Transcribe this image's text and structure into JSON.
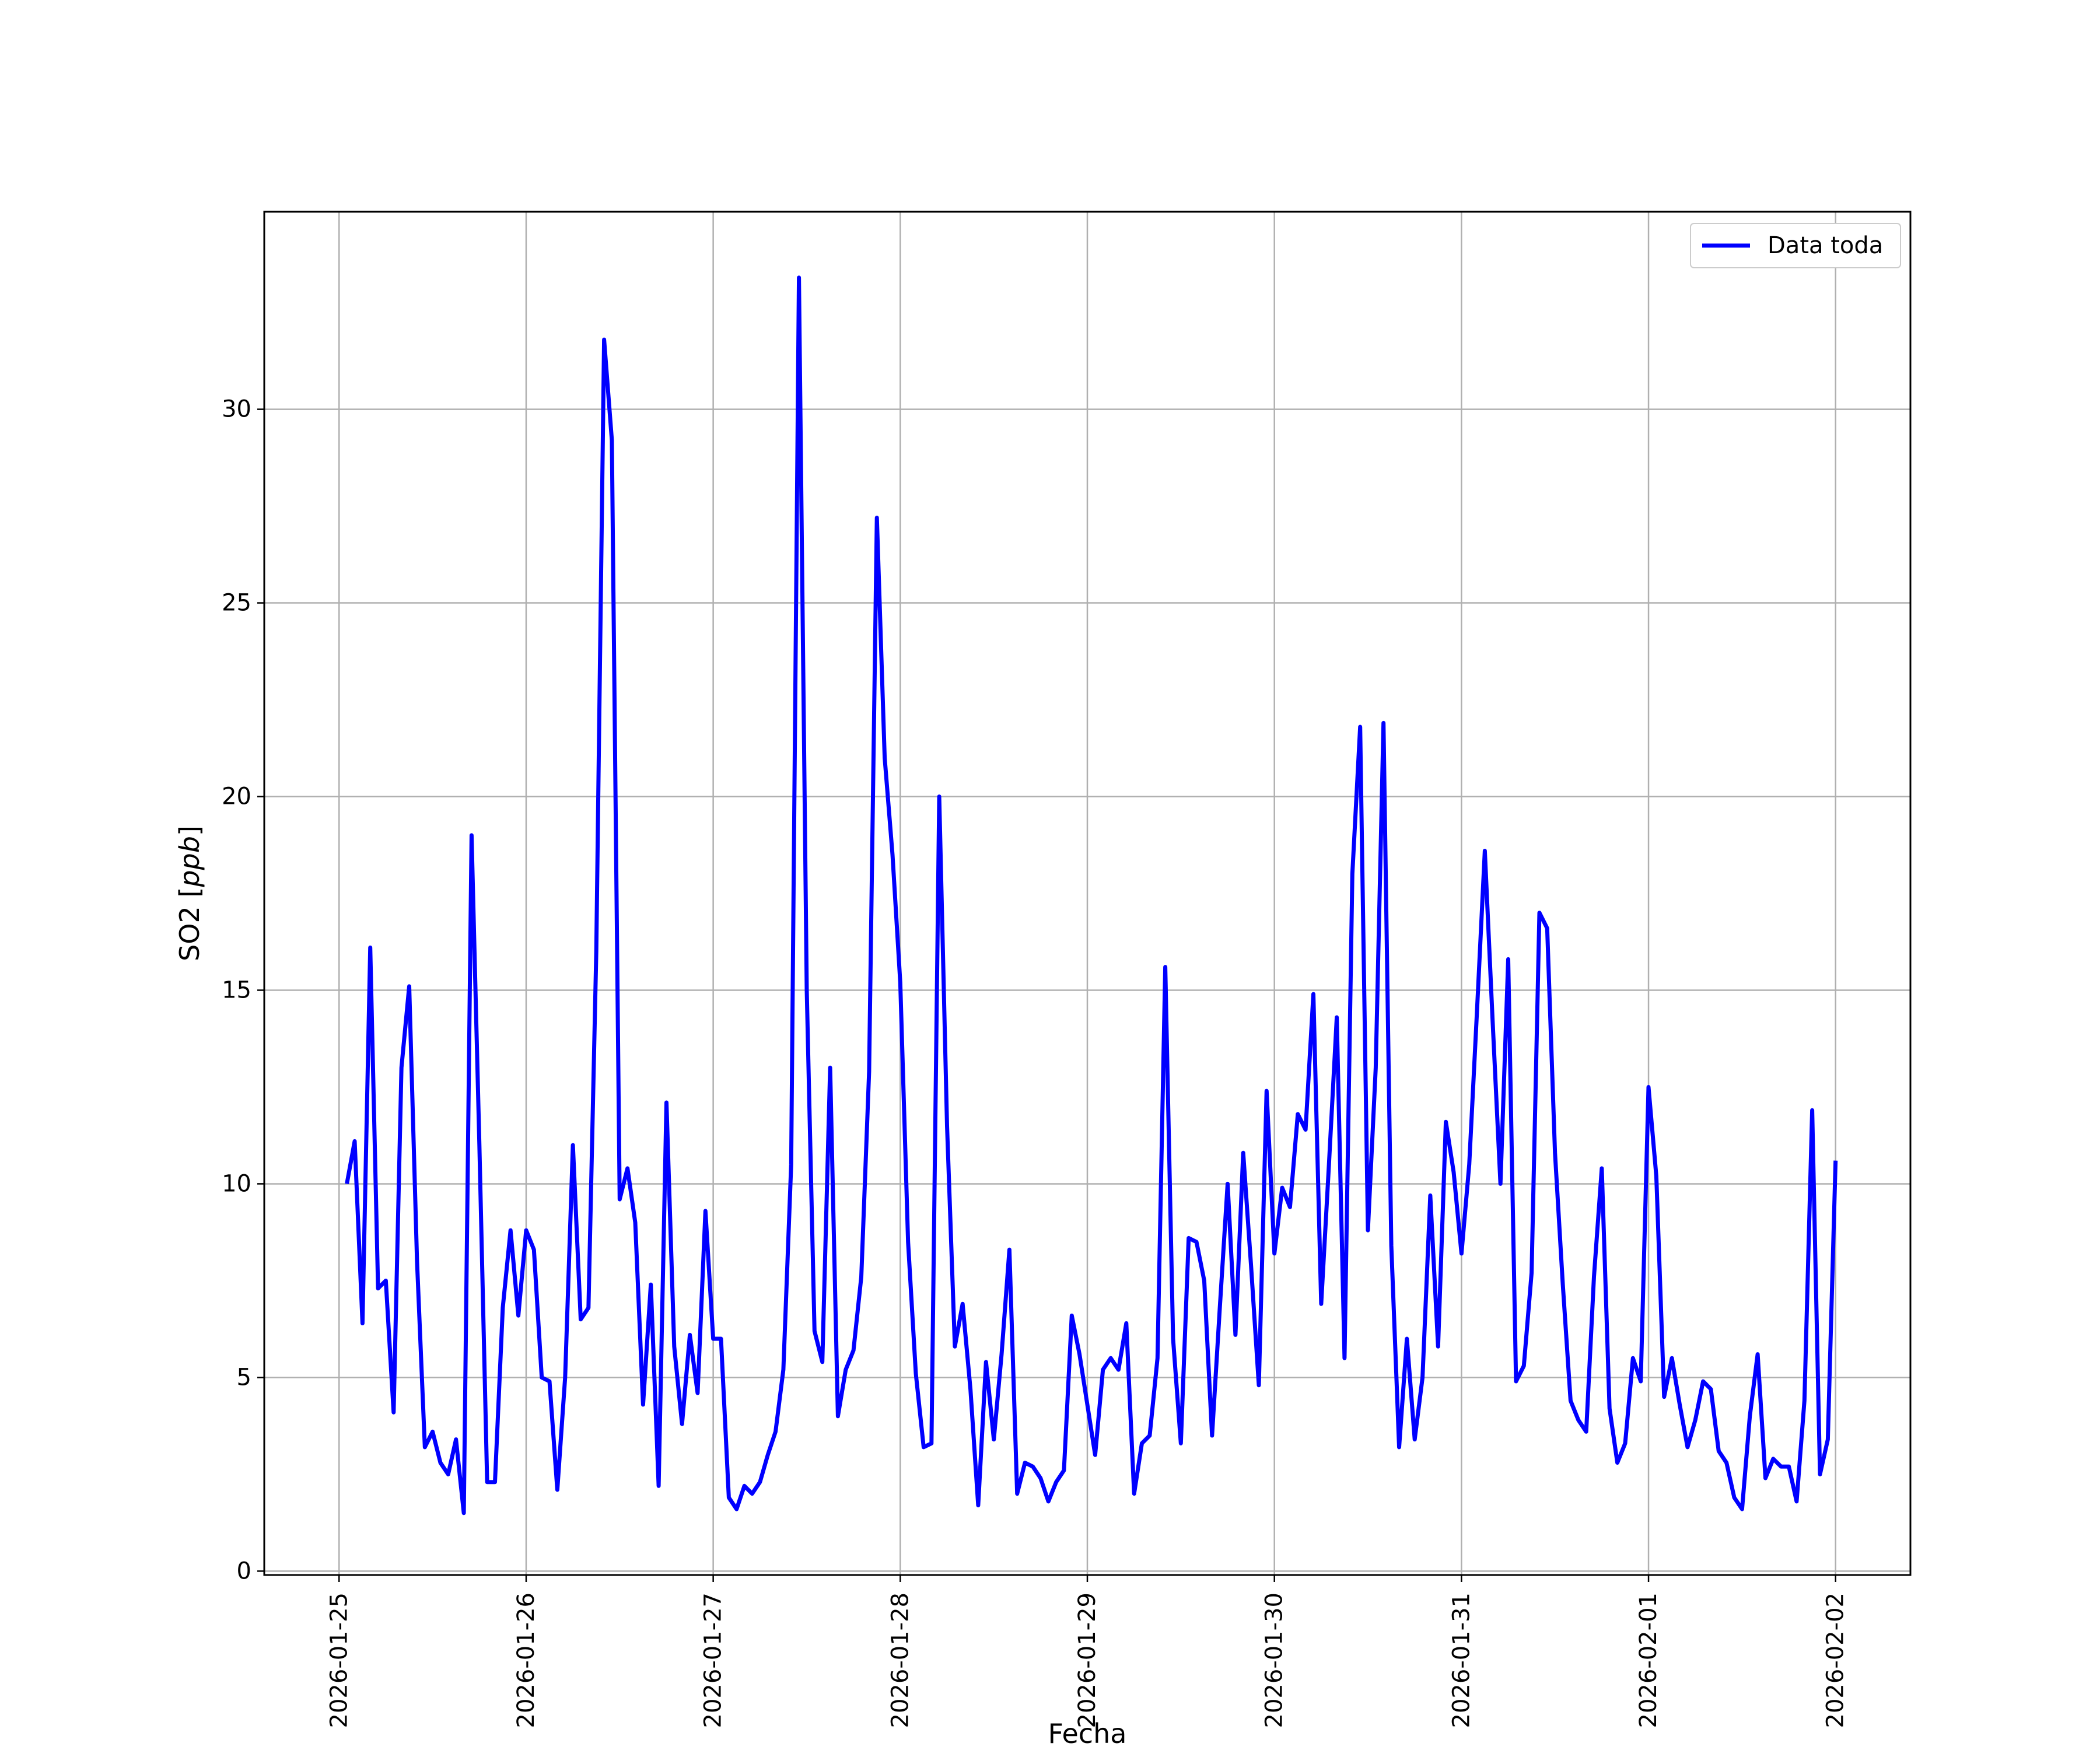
{
  "chart_data": {
    "type": "line",
    "title": "",
    "xlabel": "Fecha",
    "ylabel": "SO2 [",
    "ylabel_italic": "ppb",
    "ylabel_end": "]",
    "xlim": [
      "2026-01-24T14:24:00",
      "2026-02-02T09:36:00"
    ],
    "ylim": [
      -0.1,
      35.1
    ],
    "grid": true,
    "legend_position": "top-right",
    "x_ticks": [
      "2026-01-25",
      "2026-01-26",
      "2026-01-27",
      "2026-01-28",
      "2026-01-29",
      "2026-01-30",
      "2026-01-31",
      "2026-02-01",
      "2026-02-02"
    ],
    "y_ticks": [
      0,
      5,
      10,
      15,
      20,
      25,
      30
    ],
    "series": [
      {
        "name": "Data toda",
        "color": "#0000ff",
        "start": "2026-01-25T01:00:00",
        "step_hours": 1,
        "values": [
          10.0,
          11.1,
          6.4,
          16.1,
          7.3,
          7.5,
          4.1,
          13.0,
          15.1,
          8.0,
          3.2,
          3.6,
          2.8,
          2.5,
          3.4,
          1.5,
          19.0,
          11.0,
          2.3,
          2.3,
          6.8,
          8.8,
          6.6,
          8.8,
          8.3,
          5.0,
          4.9,
          2.1,
          5.0,
          11.0,
          6.5,
          6.8,
          16.0,
          31.8,
          29.2,
          9.6,
          10.4,
          9.0,
          4.3,
          7.4,
          2.2,
          12.1,
          5.8,
          3.8,
          6.1,
          4.6,
          9.3,
          6.0,
          6.0,
          1.9,
          1.6,
          2.2,
          2.0,
          2.3,
          3.0,
          3.6,
          5.2,
          10.5,
          33.4,
          15.0,
          6.2,
          5.4,
          13.0,
          4.0,
          5.2,
          5.7,
          7.6,
          12.9,
          27.2,
          21.0,
          18.5,
          15.2,
          8.5,
          5.1,
          3.2,
          3.3,
          20.0,
          11.5,
          5.8,
          6.9,
          4.7,
          1.7,
          5.4,
          3.4,
          5.6,
          8.3,
          2.0,
          2.8,
          2.7,
          2.4,
          1.8,
          2.3,
          2.6,
          6.6,
          5.6,
          4.3,
          3.0,
          5.2,
          5.5,
          5.2,
          6.4,
          2.0,
          3.3,
          3.5,
          5.5,
          15.6,
          6.0,
          3.3,
          8.6,
          8.5,
          7.5,
          3.5,
          6.8,
          10.0,
          6.1,
          10.8,
          7.9,
          4.8,
          12.4,
          8.2,
          9.9,
          9.4,
          11.8,
          11.4,
          14.9,
          6.9,
          10.5,
          14.3,
          5.5,
          18.0,
          21.8,
          8.8,
          13.0,
          21.9,
          8.4,
          3.2,
          6.0,
          3.4,
          5.0,
          9.7,
          5.8,
          11.6,
          10.3,
          8.2,
          10.5,
          14.5,
          18.6,
          14.2,
          10.0,
          15.8,
          4.9,
          5.3,
          7.7,
          17.0,
          16.6,
          10.8,
          7.4,
          4.4,
          3.9,
          3.6,
          7.6,
          10.4,
          4.2,
          2.8,
          3.3,
          5.5,
          4.9,
          12.5,
          10.2,
          4.5,
          5.5,
          4.3,
          3.2,
          3.9,
          4.9,
          4.7,
          3.1,
          2.8,
          1.9,
          1.6,
          4.0,
          5.6,
          2.4,
          2.9,
          2.7,
          2.7,
          1.8,
          4.4,
          11.9,
          2.5,
          3.4,
          10.6
        ]
      }
    ]
  }
}
